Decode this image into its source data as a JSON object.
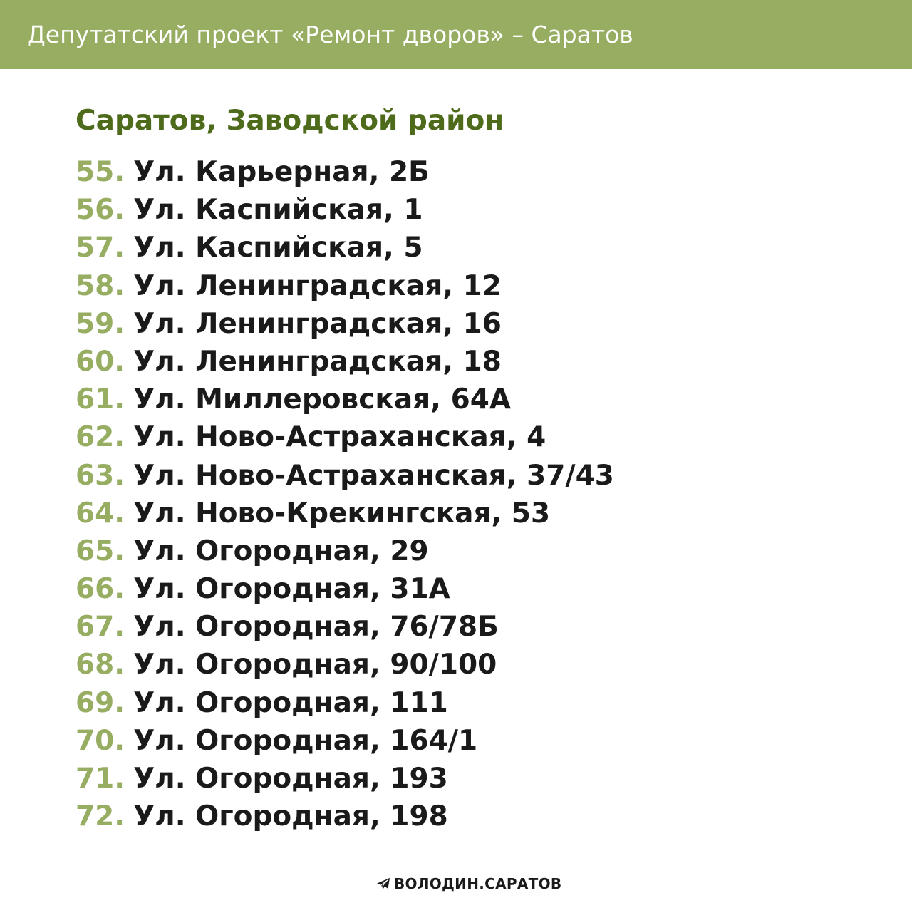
{
  "header": {
    "title": "Депутатский проект «Ремонт дворов» – Саратов"
  },
  "section": {
    "title": "Саратов, Заводской район"
  },
  "addresses": [
    {
      "num": "55.",
      "text": "Ул. Карьерная, 2Б"
    },
    {
      "num": "56.",
      "text": "Ул. Каспийская, 1"
    },
    {
      "num": "57.",
      "text": "Ул. Каспийская, 5"
    },
    {
      "num": "58.",
      "text": "Ул. Ленинградская, 12"
    },
    {
      "num": "59.",
      "text": "Ул. Ленинградская, 16"
    },
    {
      "num": "60.",
      "text": "Ул. Ленинградская, 18"
    },
    {
      "num": "61.",
      "text": "Ул. Миллеровская, 64А"
    },
    {
      "num": "62.",
      "text": "Ул. Ново-Астраханская, 4"
    },
    {
      "num": "63.",
      "text": "Ул. Ново-Астраханская, 37/43"
    },
    {
      "num": "64.",
      "text": "Ул. Ново-Крекингская, 53"
    },
    {
      "num": "65.",
      "text": "Ул. Огородная, 29"
    },
    {
      "num": "66.",
      "text": "Ул. Огородная, 31А"
    },
    {
      "num": "67.",
      "text": "Ул. Огородная, 76/78Б"
    },
    {
      "num": "68.",
      "text": "Ул. Огородная, 90/100"
    },
    {
      "num": "69.",
      "text": "Ул. Огородная, 111"
    },
    {
      "num": "70.",
      "text": "Ул. Огородная, 164/1"
    },
    {
      "num": "71.",
      "text": "Ул. Огородная, 193"
    },
    {
      "num": "72.",
      "text": "Ул. Огородная, 198"
    }
  ],
  "footer": {
    "icon": "telegram-plane-icon",
    "label": "ВОЛОДИН.САРАТОВ"
  },
  "colors": {
    "header_bg": "#97ad62",
    "section_title": "#4e6a1b",
    "item_number": "#97ad62",
    "item_text": "#1a1a1a"
  }
}
